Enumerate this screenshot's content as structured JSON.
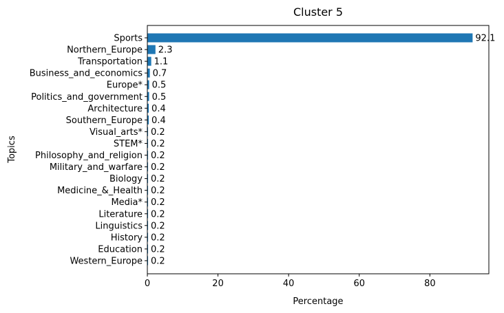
{
  "chart_data": {
    "type": "bar",
    "orientation": "horizontal",
    "title": "Cluster 5",
    "xlabel": "Percentage",
    "ylabel": "Topics",
    "categories": [
      "Sports",
      "Northern_Europe",
      "Transportation",
      "Business_and_economics",
      "Europe*",
      "Politics_and_government",
      "Architecture",
      "Southern_Europe",
      "Visual_arts*",
      "STEM*",
      "Philosophy_and_religion",
      "Military_and_warfare",
      "Biology",
      "Medicine_&_Health",
      "Media*",
      "Literature",
      "Linguistics",
      "History",
      "Education",
      "Western_Europe"
    ],
    "values": [
      92.1,
      2.3,
      1.1,
      0.7,
      0.5,
      0.5,
      0.4,
      0.4,
      0.2,
      0.2,
      0.2,
      0.2,
      0.2,
      0.2,
      0.2,
      0.2,
      0.2,
      0.2,
      0.2,
      0.2
    ],
    "value_labels": [
      "92.1",
      "2.3",
      "1.1",
      "0.7",
      "0.5",
      "0.5",
      "0.4",
      "0.4",
      "0.2",
      "0.2",
      "0.2",
      "0.2",
      "0.2",
      "0.2",
      "0.2",
      "0.2",
      "0.2",
      "0.2",
      "0.2",
      "0.2"
    ],
    "xlim": [
      0,
      96.7
    ],
    "xticks": [
      0,
      20,
      40,
      60,
      80
    ],
    "grid": false,
    "bar_color": "#1f77b4"
  }
}
